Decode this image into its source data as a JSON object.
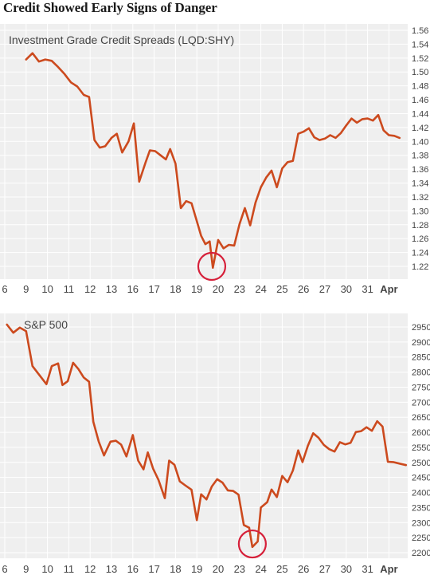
{
  "title": "Credit Showed Early Signs of Danger",
  "colors": {
    "line": "#cc4a1e",
    "highlight": "#d6203a",
    "panel": "#efefef"
  },
  "chart_data": [
    {
      "type": "line",
      "title": "Investment Grade Credit Spreads (LQD:SHY)",
      "ylim": [
        1.205,
        1.565
      ],
      "yticks": [
        1.56,
        1.54,
        1.52,
        1.5,
        1.48,
        1.46,
        1.44,
        1.42,
        1.4,
        1.38,
        1.36,
        1.34,
        1.32,
        1.3,
        1.28,
        1.26,
        1.24,
        1.22
      ],
      "ytick_labels": [
        "1.56",
        "1.54",
        "1.52",
        "1.50",
        "1.48",
        "1.46",
        "1.44",
        "1.42",
        "1.40",
        "1.38",
        "1.36",
        "1.34",
        "1.32",
        "1.30",
        "1.28",
        "1.26",
        "1.24",
        "1.22"
      ],
      "categories": [
        "6",
        "9",
        "10",
        "11",
        "12",
        "13",
        "16",
        "17",
        "18",
        "19",
        "20",
        "23",
        "24",
        "25",
        "26",
        "27",
        "30",
        "31",
        "Apr"
      ],
      "xlim": [
        0,
        19.5
      ],
      "highlight": {
        "x": 9.7,
        "y": 1.22
      },
      "values": [
        [
          1.0,
          1.518
        ],
        [
          1.3,
          1.527
        ],
        [
          1.6,
          1.515
        ],
        [
          1.9,
          1.518
        ],
        [
          2.2,
          1.516
        ],
        [
          2.5,
          1.507
        ],
        [
          2.8,
          1.497
        ],
        [
          3.1,
          1.485
        ],
        [
          3.4,
          1.479
        ],
        [
          3.7,
          1.467
        ],
        [
          3.95,
          1.464
        ],
        [
          4.2,
          1.402
        ],
        [
          4.45,
          1.391
        ],
        [
          4.7,
          1.393
        ],
        [
          5.0,
          1.405
        ],
        [
          5.25,
          1.411
        ],
        [
          5.5,
          1.384
        ],
        [
          5.8,
          1.4
        ],
        [
          6.05,
          1.426
        ],
        [
          6.3,
          1.342
        ],
        [
          6.6,
          1.37
        ],
        [
          6.8,
          1.387
        ],
        [
          7.05,
          1.386
        ],
        [
          7.3,
          1.38
        ],
        [
          7.55,
          1.374
        ],
        [
          7.75,
          1.389
        ],
        [
          8.0,
          1.368
        ],
        [
          8.25,
          1.304
        ],
        [
          8.5,
          1.314
        ],
        [
          8.75,
          1.311
        ],
        [
          9.0,
          1.285
        ],
        [
          9.2,
          1.264
        ],
        [
          9.4,
          1.252
        ],
        [
          9.6,
          1.256
        ],
        [
          9.75,
          1.218
        ],
        [
          10.0,
          1.258
        ],
        [
          10.25,
          1.246
        ],
        [
          10.5,
          1.251
        ],
        [
          10.75,
          1.25
        ],
        [
          11.0,
          1.281
        ],
        [
          11.25,
          1.304
        ],
        [
          11.5,
          1.279
        ],
        [
          11.75,
          1.312
        ],
        [
          12.0,
          1.334
        ],
        [
          12.25,
          1.348
        ],
        [
          12.5,
          1.358
        ],
        [
          12.75,
          1.334
        ],
        [
          13.0,
          1.361
        ],
        [
          13.25,
          1.37
        ],
        [
          13.5,
          1.372
        ],
        [
          13.75,
          1.411
        ],
        [
          14.0,
          1.414
        ],
        [
          14.25,
          1.419
        ],
        [
          14.5,
          1.406
        ],
        [
          14.75,
          1.402
        ],
        [
          15.0,
          1.404
        ],
        [
          15.25,
          1.409
        ],
        [
          15.5,
          1.405
        ],
        [
          15.75,
          1.412
        ],
        [
          16.0,
          1.423
        ],
        [
          16.25,
          1.433
        ],
        [
          16.5,
          1.427
        ],
        [
          16.75,
          1.432
        ],
        [
          17.0,
          1.433
        ],
        [
          17.25,
          1.43
        ],
        [
          17.5,
          1.438
        ],
        [
          17.75,
          1.416
        ],
        [
          18.0,
          1.409
        ],
        [
          18.25,
          1.408
        ],
        [
          18.5,
          1.405
        ]
      ]
    },
    {
      "type": "line",
      "title": "S&P 500",
      "ylim": [
        2180,
        2980
      ],
      "yticks": [
        2950,
        2900,
        2850,
        2800,
        2750,
        2700,
        2650,
        2600,
        2550,
        2500,
        2450,
        2400,
        2350,
        2300,
        2250,
        2200
      ],
      "ytick_labels": [
        "2950",
        "2900",
        "2850",
        "2800",
        "2750",
        "2700",
        "2650",
        "2600",
        "2550",
        "2500",
        "2450",
        "2400",
        "2350",
        "2300",
        "2250",
        "2200"
      ],
      "categories": [
        "6",
        "9",
        "10",
        "11",
        "12",
        "13",
        "16",
        "17",
        "18",
        "19",
        "20",
        "23",
        "24",
        "25",
        "26",
        "27",
        "30",
        "31",
        "Apr"
      ],
      "xlim": [
        0,
        19.5
      ],
      "highlight": {
        "x": 11.6,
        "y": 2229
      },
      "values": [
        [
          0.1,
          2958
        ],
        [
          0.4,
          2931
        ],
        [
          0.7,
          2948
        ],
        [
          1.0,
          2936
        ],
        [
          1.3,
          2820
        ],
        [
          1.6,
          2792
        ],
        [
          1.95,
          2760
        ],
        [
          2.2,
          2820
        ],
        [
          2.5,
          2829
        ],
        [
          2.7,
          2757
        ],
        [
          2.95,
          2770
        ],
        [
          3.2,
          2831
        ],
        [
          3.45,
          2810
        ],
        [
          3.7,
          2782
        ],
        [
          3.95,
          2768
        ],
        [
          4.15,
          2635
        ],
        [
          4.4,
          2570
        ],
        [
          4.65,
          2523
        ],
        [
          4.95,
          2569
        ],
        [
          5.2,
          2572
        ],
        [
          5.45,
          2559
        ],
        [
          5.7,
          2520
        ],
        [
          6.0,
          2591
        ],
        [
          6.25,
          2506
        ],
        [
          6.5,
          2477
        ],
        [
          6.7,
          2533
        ],
        [
          6.95,
          2479
        ],
        [
          7.2,
          2442
        ],
        [
          7.5,
          2381
        ],
        [
          7.7,
          2506
        ],
        [
          7.95,
          2492
        ],
        [
          8.2,
          2437
        ],
        [
          8.45,
          2424
        ],
        [
          8.75,
          2409
        ],
        [
          9.0,
          2308
        ],
        [
          9.2,
          2394
        ],
        [
          9.45,
          2377
        ],
        [
          9.7,
          2420
        ],
        [
          9.95,
          2444
        ],
        [
          10.2,
          2433
        ],
        [
          10.45,
          2407
        ],
        [
          10.7,
          2405
        ],
        [
          10.95,
          2393
        ],
        [
          11.2,
          2292
        ],
        [
          11.45,
          2283
        ],
        [
          11.6,
          2219
        ],
        [
          11.85,
          2237
        ],
        [
          12.0,
          2350
        ],
        [
          12.3,
          2368
        ],
        [
          12.5,
          2410
        ],
        [
          12.75,
          2385
        ],
        [
          13.0,
          2455
        ],
        [
          13.25,
          2434
        ],
        [
          13.5,
          2473
        ],
        [
          13.75,
          2540
        ],
        [
          13.95,
          2501
        ],
        [
          14.2,
          2555
        ],
        [
          14.45,
          2597
        ],
        [
          14.7,
          2582
        ],
        [
          14.95,
          2558
        ],
        [
          15.2,
          2544
        ],
        [
          15.45,
          2536
        ],
        [
          15.7,
          2567
        ],
        [
          15.95,
          2560
        ],
        [
          16.2,
          2565
        ],
        [
          16.45,
          2601
        ],
        [
          16.7,
          2604
        ],
        [
          16.95,
          2617
        ],
        [
          17.2,
          2605
        ],
        [
          17.45,
          2637
        ],
        [
          17.7,
          2619
        ],
        [
          17.95,
          2502
        ],
        [
          18.2,
          2501
        ],
        [
          18.5,
          2496
        ],
        [
          18.8,
          2491
        ]
      ]
    }
  ]
}
